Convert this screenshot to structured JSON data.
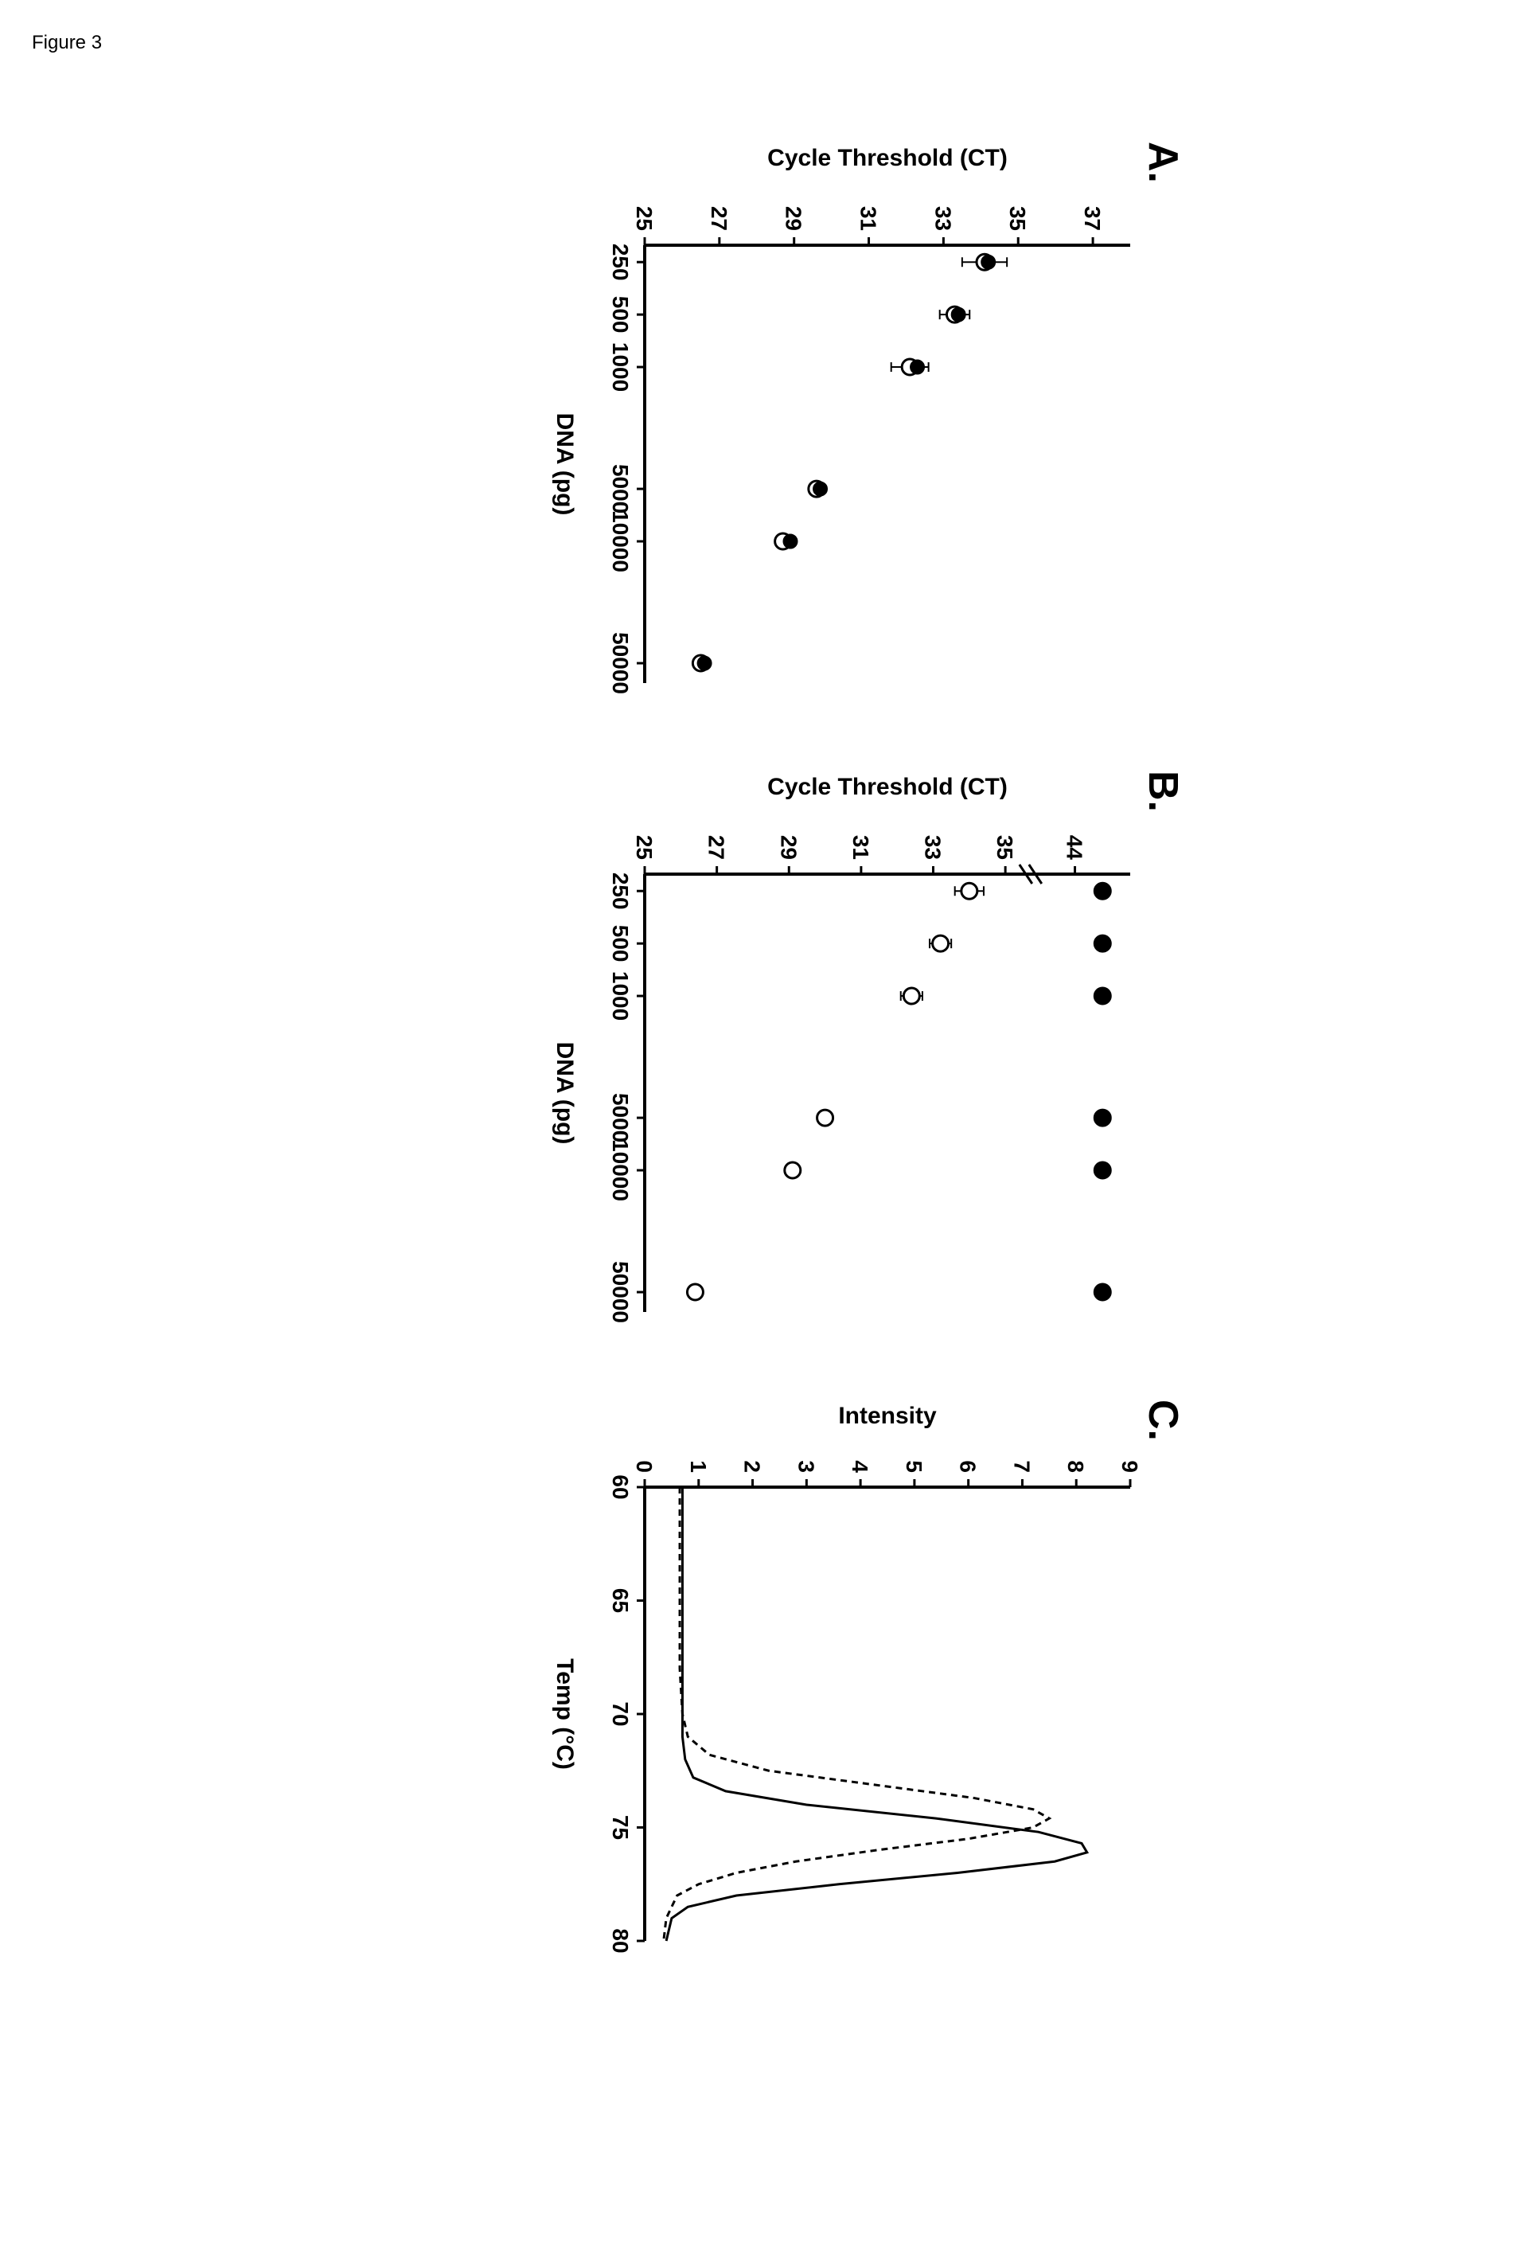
{
  "figure_label": "Figure 3",
  "panelA": {
    "letter": "A.",
    "type": "scatter",
    "xlabel": "DNA (pg)",
    "ylabel": "Cycle Threshold (CT)",
    "x_scale": "log",
    "x_ticks": [
      250,
      500,
      1000,
      5000,
      10000,
      50000
    ],
    "y_ticks": [
      25,
      27,
      29,
      31,
      33,
      35,
      37
    ],
    "ylim": [
      25,
      38
    ],
    "series": [
      {
        "marker": "circle-open",
        "color": "#000000",
        "fill": "#ffffff",
        "size": 10,
        "points": [
          {
            "x": 250,
            "y": 34.1,
            "xerr": 0.6
          },
          {
            "x": 500,
            "y": 33.3,
            "xerr": 0.4
          },
          {
            "x": 1000,
            "y": 32.1,
            "xerr": 0.5
          },
          {
            "x": 5000,
            "y": 29.6,
            "xerr": 0.1
          },
          {
            "x": 10000,
            "y": 28.7,
            "xerr": 0.1
          },
          {
            "x": 50000,
            "y": 26.5,
            "xerr": 0.1
          }
        ]
      },
      {
        "marker": "circle-filled",
        "color": "#000000",
        "fill": "#000000",
        "size": 8,
        "points": [
          {
            "x": 250,
            "y": 34.2
          },
          {
            "x": 500,
            "y": 33.4
          },
          {
            "x": 1000,
            "y": 32.3
          },
          {
            "x": 5000,
            "y": 29.7
          },
          {
            "x": 10000,
            "y": 28.9
          },
          {
            "x": 50000,
            "y": 26.6
          }
        ]
      }
    ],
    "axis_color": "#000000",
    "background_color": "#ffffff",
    "label_fontsize": 30,
    "tick_fontsize": 28
  },
  "panelB": {
    "letter": "B.",
    "type": "scatter",
    "xlabel": "DNA (pg)",
    "ylabel": "Cycle Threshold (CT)",
    "x_scale": "log",
    "x_ticks": [
      250,
      500,
      1000,
      5000,
      10000,
      50000
    ],
    "y_ticks_lower": [
      25,
      27,
      29,
      31,
      33,
      35
    ],
    "y_ticks_upper": [
      44
    ],
    "axis_break": true,
    "series": [
      {
        "marker": "circle-open",
        "color": "#000000",
        "fill": "#ffffff",
        "size": 10,
        "points": [
          {
            "x": 250,
            "y": 34.0,
            "yerr": 0.4
          },
          {
            "x": 500,
            "y": 33.2,
            "yerr": 0.3
          },
          {
            "x": 1000,
            "y": 32.4,
            "yerr": 0.3
          },
          {
            "x": 5000,
            "y": 30.0,
            "yerr": 0.1
          },
          {
            "x": 10000,
            "y": 29.1,
            "yerr": 0.1
          },
          {
            "x": 50000,
            "y": 26.4,
            "yerr": 0.1
          }
        ]
      },
      {
        "marker": "circle-filled",
        "color": "#000000",
        "fill": "#000000",
        "size": 10,
        "points": [
          {
            "x": 250,
            "y": 45
          },
          {
            "x": 500,
            "y": 45
          },
          {
            "x": 1000,
            "y": 45
          },
          {
            "x": 5000,
            "y": 45
          },
          {
            "x": 10000,
            "y": 45
          },
          {
            "x": 50000,
            "y": 45
          }
        ]
      }
    ],
    "axis_color": "#000000",
    "background_color": "#ffffff",
    "label_fontsize": 30,
    "tick_fontsize": 28
  },
  "panelC": {
    "letter": "C.",
    "type": "line",
    "xlabel": "Temp (°C)",
    "ylabel": "Intensity",
    "x_ticks": [
      60,
      65,
      70,
      75,
      80
    ],
    "y_ticks": [
      0,
      1,
      2,
      3,
      4,
      5,
      6,
      7,
      8,
      9
    ],
    "xlim": [
      60,
      80
    ],
    "ylim": [
      0,
      9
    ],
    "series": [
      {
        "style": "solid",
        "color": "#000000",
        "width": 3,
        "points": [
          {
            "x": 60,
            "y": 0.7
          },
          {
            "x": 62,
            "y": 0.7
          },
          {
            "x": 64,
            "y": 0.7
          },
          {
            "x": 66,
            "y": 0.7
          },
          {
            "x": 68,
            "y": 0.7
          },
          {
            "x": 70,
            "y": 0.7
          },
          {
            "x": 71,
            "y": 0.7
          },
          {
            "x": 72,
            "y": 0.75
          },
          {
            "x": 72.8,
            "y": 0.9
          },
          {
            "x": 73.4,
            "y": 1.5
          },
          {
            "x": 74,
            "y": 3.0
          },
          {
            "x": 74.6,
            "y": 5.4
          },
          {
            "x": 75.2,
            "y": 7.3
          },
          {
            "x": 75.7,
            "y": 8.1
          },
          {
            "x": 76.1,
            "y": 8.2
          },
          {
            "x": 76.5,
            "y": 7.6
          },
          {
            "x": 77,
            "y": 5.8
          },
          {
            "x": 77.5,
            "y": 3.6
          },
          {
            "x": 78,
            "y": 1.7
          },
          {
            "x": 78.5,
            "y": 0.8
          },
          {
            "x": 79,
            "y": 0.5
          },
          {
            "x": 80,
            "y": 0.4
          }
        ]
      },
      {
        "style": "dashed",
        "color": "#000000",
        "width": 3,
        "dash": "8,6",
        "points": [
          {
            "x": 60,
            "y": 0.65
          },
          {
            "x": 62,
            "y": 0.65
          },
          {
            "x": 64,
            "y": 0.65
          },
          {
            "x": 66,
            "y": 0.65
          },
          {
            "x": 68,
            "y": 0.65
          },
          {
            "x": 70,
            "y": 0.7
          },
          {
            "x": 71,
            "y": 0.8
          },
          {
            "x": 71.8,
            "y": 1.2
          },
          {
            "x": 72.5,
            "y": 2.3
          },
          {
            "x": 73.1,
            "y": 4.2
          },
          {
            "x": 73.7,
            "y": 6.1
          },
          {
            "x": 74.2,
            "y": 7.2
          },
          {
            "x": 74.6,
            "y": 7.5
          },
          {
            "x": 75,
            "y": 7.2
          },
          {
            "x": 75.5,
            "y": 6.0
          },
          {
            "x": 76,
            "y": 4.3
          },
          {
            "x": 76.5,
            "y": 2.8
          },
          {
            "x": 77,
            "y": 1.7
          },
          {
            "x": 77.5,
            "y": 1.0
          },
          {
            "x": 78,
            "y": 0.6
          },
          {
            "x": 79,
            "y": 0.4
          },
          {
            "x": 80,
            "y": 0.35
          }
        ]
      }
    ],
    "axis_color": "#000000",
    "background_color": "#ffffff",
    "label_fontsize": 30,
    "tick_fontsize": 28
  }
}
